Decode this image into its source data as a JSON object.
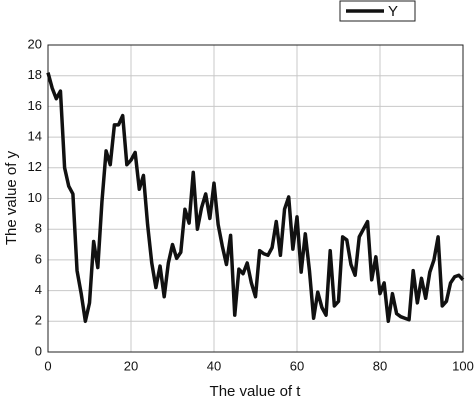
{
  "chart_data": {
    "type": "line",
    "xlabel": "The value of t",
    "ylabel": "The value of y",
    "x": [
      0,
      1,
      2,
      3,
      4,
      5,
      6,
      7,
      8,
      9,
      10,
      11,
      12,
      13,
      14,
      15,
      16,
      17,
      18,
      19,
      20,
      21,
      22,
      23,
      24,
      25,
      26,
      27,
      28,
      29,
      30,
      31,
      32,
      33,
      34,
      35,
      36,
      37,
      38,
      39,
      40,
      41,
      42,
      43,
      44,
      45,
      46,
      47,
      48,
      49,
      50,
      51,
      52,
      53,
      54,
      55,
      56,
      57,
      58,
      59,
      60,
      61,
      62,
      63,
      64,
      65,
      66,
      67,
      68,
      69,
      70,
      71,
      72,
      73,
      74,
      75,
      76,
      77,
      78,
      79,
      80,
      81,
      82,
      83,
      84,
      85,
      86,
      87,
      88,
      89,
      90,
      91,
      92,
      93,
      94,
      95,
      96,
      97,
      98,
      99,
      100
    ],
    "series": [
      {
        "name": "Y",
        "color": "#111111",
        "values": [
          18.2,
          17.2,
          16.5,
          17.0,
          12.0,
          10.8,
          10.3,
          5.3,
          3.8,
          2.0,
          3.2,
          7.2,
          5.5,
          9.8,
          13.1,
          12.2,
          14.8,
          14.8,
          15.4,
          12.2,
          12.5,
          13.0,
          10.6,
          11.5,
          8.3,
          5.8,
          4.2,
          5.6,
          3.6,
          5.8,
          7.0,
          6.1,
          6.5,
          9.3,
          8.4,
          11.7,
          8.0,
          9.4,
          10.3,
          8.7,
          11.0,
          8.3,
          6.9,
          5.7,
          7.6,
          2.4,
          5.4,
          5.1,
          5.8,
          4.5,
          3.6,
          6.6,
          6.4,
          6.3,
          6.8,
          8.5,
          6.3,
          9.3,
          10.1,
          6.7,
          8.8,
          5.2,
          7.7,
          5.3,
          2.2,
          3.9,
          2.9,
          2.4,
          6.6,
          3.0,
          3.3,
          7.5,
          7.3,
          5.7,
          5.0,
          7.5,
          8.0,
          8.5,
          4.7,
          6.2,
          3.8,
          4.5,
          2.0,
          3.8,
          2.5,
          2.3,
          2.2,
          2.1,
          5.3,
          3.2,
          4.8,
          3.5,
          5.2,
          6.0,
          7.5,
          3.0,
          3.3,
          4.5,
          4.9,
          5.0,
          4.7
        ]
      }
    ],
    "xlim": [
      0,
      100
    ],
    "xticks": [
      0,
      20,
      40,
      60,
      80,
      100
    ],
    "ylim": [
      0,
      20
    ],
    "yticks": [
      0,
      2,
      4,
      6,
      8,
      10,
      12,
      14,
      16,
      18,
      20
    ],
    "grid": true,
    "legend": "top-right"
  }
}
